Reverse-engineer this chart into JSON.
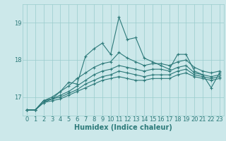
{
  "title": "",
  "xlabel": "Humidex (Indice chaleur)",
  "bg_color": "#cce8ea",
  "grid_color": "#99cccc",
  "line_color": "#2d7a7a",
  "xlim": [
    -0.5,
    23.5
  ],
  "ylim": [
    16.5,
    19.5
  ],
  "yticks": [
    17,
    18,
    19
  ],
  "xticks": [
    0,
    1,
    2,
    3,
    4,
    5,
    6,
    7,
    8,
    9,
    10,
    11,
    12,
    13,
    14,
    15,
    16,
    17,
    18,
    19,
    20,
    21,
    22,
    23
  ],
  "lines": [
    [
      16.65,
      16.65,
      16.9,
      16.95,
      17.15,
      17.4,
      17.35,
      18.1,
      18.3,
      18.45,
      18.15,
      19.15,
      18.55,
      18.6,
      18.05,
      17.95,
      17.85,
      17.75,
      18.15,
      18.15,
      17.7,
      17.6,
      17.25,
      17.65
    ],
    [
      16.65,
      16.65,
      16.9,
      17.0,
      17.15,
      17.3,
      17.5,
      17.65,
      17.8,
      17.9,
      17.95,
      18.2,
      18.05,
      17.95,
      17.85,
      17.9,
      17.9,
      17.85,
      17.95,
      18.0,
      17.8,
      17.7,
      17.65,
      17.7
    ],
    [
      16.65,
      16.65,
      16.9,
      16.95,
      17.05,
      17.15,
      17.3,
      17.45,
      17.6,
      17.7,
      17.75,
      17.85,
      17.8,
      17.75,
      17.7,
      17.75,
      17.75,
      17.7,
      17.8,
      17.85,
      17.65,
      17.6,
      17.55,
      17.6
    ],
    [
      16.65,
      16.65,
      16.85,
      16.95,
      17.0,
      17.1,
      17.2,
      17.35,
      17.45,
      17.55,
      17.6,
      17.7,
      17.65,
      17.6,
      17.55,
      17.6,
      17.6,
      17.6,
      17.7,
      17.75,
      17.6,
      17.55,
      17.5,
      17.55
    ],
    [
      16.65,
      16.65,
      16.85,
      16.9,
      16.95,
      17.05,
      17.15,
      17.25,
      17.35,
      17.45,
      17.5,
      17.55,
      17.5,
      17.45,
      17.45,
      17.5,
      17.5,
      17.5,
      17.6,
      17.65,
      17.55,
      17.5,
      17.45,
      17.5
    ]
  ],
  "xlabel_fontsize": 7,
  "tick_fontsize": 6,
  "lw": 0.8,
  "markersize": 2.5
}
